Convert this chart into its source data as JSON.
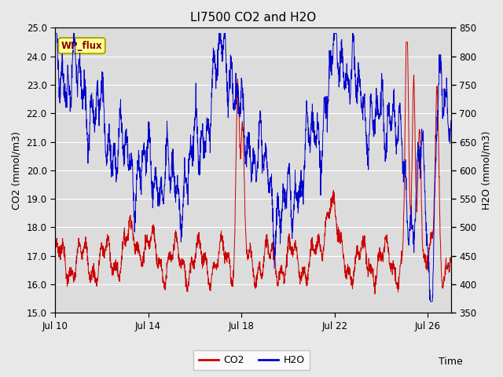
{
  "title": "LI7500 CO2 and H2O",
  "xlabel": "Time",
  "ylabel_left": "CO2 (mmol/m3)",
  "ylabel_right": "H2O (mmol/m3)",
  "ylim_left": [
    15.0,
    25.0
  ],
  "ylim_right": [
    350,
    850
  ],
  "yticks_left": [
    15.0,
    16.0,
    17.0,
    18.0,
    19.0,
    20.0,
    21.0,
    22.0,
    23.0,
    24.0,
    25.0
  ],
  "yticks_right": [
    350,
    400,
    450,
    500,
    550,
    600,
    650,
    700,
    750,
    800,
    850
  ],
  "xtick_labels": [
    "Jul 10",
    "Jul 14",
    "Jul 18",
    "Jul 22",
    "Jul 26"
  ],
  "xtick_positions": [
    0,
    4,
    8,
    12,
    16
  ],
  "xlim": [
    0,
    17
  ],
  "co2_color": "#cc0000",
  "h2o_color": "#0000cc",
  "bg_color": "#e8e8e8",
  "plot_bg_color": "#dcdcdc",
  "grid_color": "#ffffff",
  "annotation_text": "WP_flux",
  "annotation_bg": "#ffff99",
  "annotation_border": "#aaaa00",
  "legend_co2": "CO2",
  "legend_h2o": "H2O",
  "title_fontsize": 11,
  "label_fontsize": 9,
  "tick_fontsize": 8.5,
  "legend_fontsize": 9
}
